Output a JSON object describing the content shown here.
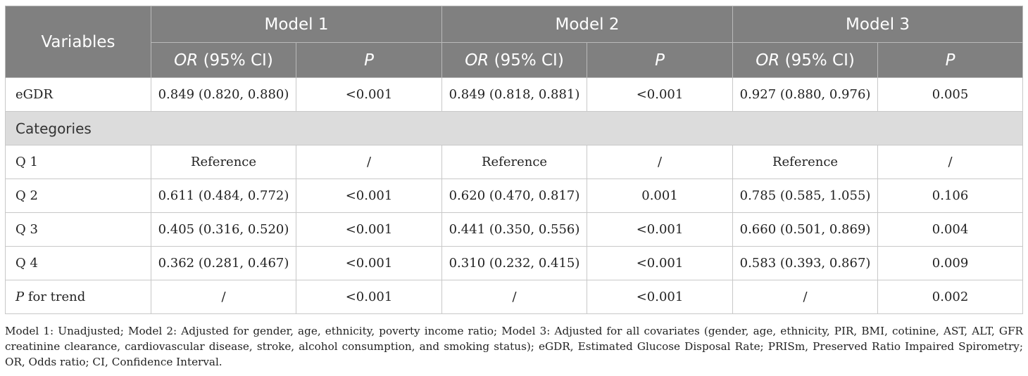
{
  "table": {
    "header_variables": "Variables",
    "models": [
      "Model 1",
      "Model 2",
      "Model 3"
    ],
    "sub_or": "OR",
    "sub_ci": " (95% CI)",
    "sub_p": "P",
    "rows_top": [
      {
        "label": "eGDR",
        "cells": [
          "0.849 (0.820, 0.880)",
          "<0.001",
          "0.849 (0.818, 0.881)",
          "<0.001",
          "0.927 (0.880, 0.976)",
          "0.005"
        ]
      }
    ],
    "section_label": "Categories",
    "rows": [
      {
        "label": "Q 1",
        "cells": [
          "Reference",
          "/",
          "Reference",
          "/",
          "Reference",
          "/"
        ]
      },
      {
        "label": "Q 2",
        "cells": [
          "0.611 (0.484, 0.772)",
          "<0.001",
          "0.620 (0.470, 0.817)",
          "0.001",
          "0.785 (0.585, 1.055)",
          "0.106"
        ]
      },
      {
        "label": "Q 3",
        "cells": [
          "0.405 (0.316, 0.520)",
          "<0.001",
          "0.441 (0.350, 0.556)",
          "<0.001",
          "0.660 (0.501, 0.869)",
          "0.004"
        ]
      },
      {
        "label": "Q 4",
        "cells": [
          "0.362 (0.281, 0.467)",
          "<0.001",
          "0.310 (0.232, 0.415)",
          "<0.001",
          "0.583 (0.393, 0.867)",
          "0.009"
        ]
      }
    ],
    "trend_row": {
      "label_italic": "P",
      "label_rest": " for trend",
      "cells": [
        "/",
        "<0.001",
        "/",
        "<0.001",
        "/",
        "0.002"
      ]
    }
  },
  "footnote": "Model 1: Unadjusted; Model 2: Adjusted for gender, age, ethnicity, poverty income ratio; Model 3: Adjusted for all covariates (gender, age, ethnicity, PIR, BMI, cotinine, AST, ALT, GFR creatinine clearance, cardiovascular disease, stroke, alcohol consumption, and smoking status); eGDR, Estimated Glucose Disposal Rate; PRISm, Preserved Ratio Impaired Spirometry; OR, Odds ratio; CI, Confidence Interval."
}
